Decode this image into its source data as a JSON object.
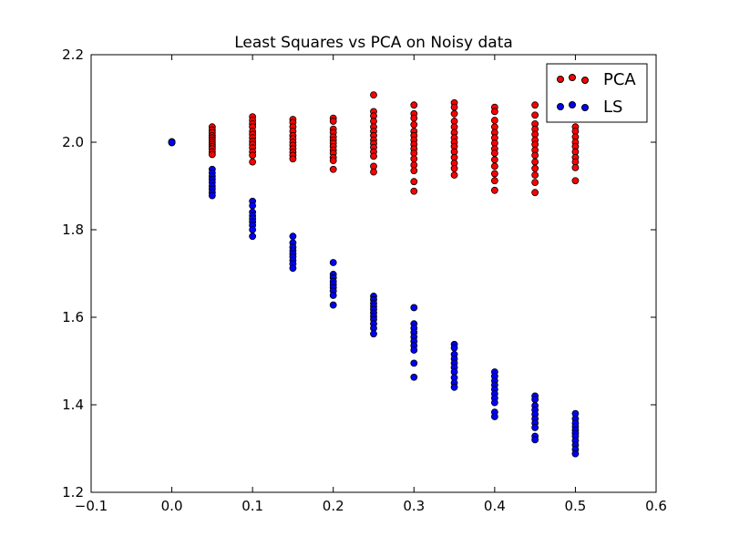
{
  "chart_data": {
    "type": "scatter",
    "title": "Least Squares vs PCA on Noisy data",
    "xlabel": "",
    "ylabel": "",
    "xlim": [
      -0.1,
      0.6
    ],
    "ylim": [
      1.2,
      2.2
    ],
    "xticks": [
      "−0.1",
      "0.0",
      "0.1",
      "0.2",
      "0.3",
      "0.4",
      "0.5",
      "0.6"
    ],
    "yticks": [
      "1.2",
      "1.4",
      "1.6",
      "1.8",
      "2.0",
      "2.2"
    ],
    "grid": false,
    "legend": "top-right",
    "series": [
      {
        "name": "PCA",
        "color": "#ff0000",
        "points": [
          [
            0.0,
            2.0
          ],
          [
            0.0,
            2.001
          ],
          [
            0.0,
            1.999
          ],
          [
            0.0,
            2.0
          ],
          [
            0.05,
            2.035
          ],
          [
            0.05,
            2.028
          ],
          [
            0.05,
            2.022
          ],
          [
            0.05,
            2.015
          ],
          [
            0.05,
            2.01
          ],
          [
            0.05,
            2.005
          ],
          [
            0.05,
            2.0
          ],
          [
            0.05,
            1.995
          ],
          [
            0.05,
            1.99
          ],
          [
            0.05,
            1.985
          ],
          [
            0.05,
            1.978
          ],
          [
            0.05,
            1.972
          ],
          [
            0.1,
            2.058
          ],
          [
            0.1,
            2.05
          ],
          [
            0.1,
            2.042
          ],
          [
            0.1,
            2.035
          ],
          [
            0.1,
            2.025
          ],
          [
            0.1,
            2.018
          ],
          [
            0.1,
            2.01
          ],
          [
            0.1,
            2.002
          ],
          [
            0.1,
            1.995
          ],
          [
            0.1,
            1.987
          ],
          [
            0.1,
            1.978
          ],
          [
            0.1,
            1.97
          ],
          [
            0.1,
            1.955
          ],
          [
            0.15,
            2.052
          ],
          [
            0.15,
            2.045
          ],
          [
            0.15,
            2.035
          ],
          [
            0.15,
            2.025
          ],
          [
            0.15,
            2.015
          ],
          [
            0.15,
            2.008
          ],
          [
            0.15,
            2.0
          ],
          [
            0.15,
            1.993
          ],
          [
            0.15,
            1.985
          ],
          [
            0.15,
            1.977
          ],
          [
            0.15,
            1.97
          ],
          [
            0.15,
            1.962
          ],
          [
            0.2,
            2.055
          ],
          [
            0.2,
            2.048
          ],
          [
            0.2,
            2.03
          ],
          [
            0.2,
            2.022
          ],
          [
            0.2,
            2.012
          ],
          [
            0.2,
            2.005
          ],
          [
            0.2,
            1.998
          ],
          [
            0.2,
            1.99
          ],
          [
            0.2,
            1.982
          ],
          [
            0.2,
            1.975
          ],
          [
            0.2,
            1.965
          ],
          [
            0.2,
            1.958
          ],
          [
            0.2,
            1.938
          ],
          [
            0.25,
            2.108
          ],
          [
            0.25,
            2.07
          ],
          [
            0.25,
            2.06
          ],
          [
            0.25,
            2.048
          ],
          [
            0.25,
            2.035
          ],
          [
            0.25,
            2.025
          ],
          [
            0.25,
            2.015
          ],
          [
            0.25,
            2.005
          ],
          [
            0.25,
            1.997
          ],
          [
            0.25,
            1.988
          ],
          [
            0.25,
            1.978
          ],
          [
            0.25,
            1.968
          ],
          [
            0.25,
            1.945
          ],
          [
            0.25,
            1.932
          ],
          [
            0.3,
            2.085
          ],
          [
            0.3,
            2.065
          ],
          [
            0.3,
            2.055
          ],
          [
            0.3,
            2.04
          ],
          [
            0.3,
            2.025
          ],
          [
            0.3,
            2.015
          ],
          [
            0.3,
            2.005
          ],
          [
            0.3,
            1.995
          ],
          [
            0.3,
            1.985
          ],
          [
            0.3,
            1.975
          ],
          [
            0.3,
            1.962
          ],
          [
            0.3,
            1.948
          ],
          [
            0.3,
            1.935
          ],
          [
            0.3,
            1.91
          ],
          [
            0.3,
            1.888
          ],
          [
            0.35,
            2.09
          ],
          [
            0.35,
            2.08
          ],
          [
            0.35,
            2.065
          ],
          [
            0.35,
            2.048
          ],
          [
            0.35,
            2.035
          ],
          [
            0.35,
            2.022
          ],
          [
            0.35,
            2.01
          ],
          [
            0.35,
            2.0
          ],
          [
            0.35,
            1.99
          ],
          [
            0.35,
            1.978
          ],
          [
            0.35,
            1.965
          ],
          [
            0.35,
            1.952
          ],
          [
            0.35,
            1.94
          ],
          [
            0.35,
            1.925
          ],
          [
            0.4,
            2.08
          ],
          [
            0.4,
            2.07
          ],
          [
            0.4,
            2.05
          ],
          [
            0.4,
            2.035
          ],
          [
            0.4,
            2.022
          ],
          [
            0.4,
            2.01
          ],
          [
            0.4,
            1.998
          ],
          [
            0.4,
            1.985
          ],
          [
            0.4,
            1.975
          ],
          [
            0.4,
            1.96
          ],
          [
            0.4,
            1.945
          ],
          [
            0.4,
            1.928
          ],
          [
            0.4,
            1.912
          ],
          [
            0.4,
            1.89
          ],
          [
            0.45,
            2.085
          ],
          [
            0.45,
            2.062
          ],
          [
            0.45,
            2.042
          ],
          [
            0.45,
            2.03
          ],
          [
            0.45,
            2.018
          ],
          [
            0.45,
            2.005
          ],
          [
            0.45,
            1.995
          ],
          [
            0.45,
            1.982
          ],
          [
            0.45,
            1.97
          ],
          [
            0.45,
            1.955
          ],
          [
            0.45,
            1.94
          ],
          [
            0.45,
            1.925
          ],
          [
            0.45,
            1.908
          ],
          [
            0.45,
            1.885
          ],
          [
            0.5,
            2.035
          ],
          [
            0.5,
            2.025
          ],
          [
            0.5,
            2.012
          ],
          [
            0.5,
            2.0
          ],
          [
            0.5,
            1.99
          ],
          [
            0.5,
            1.978
          ],
          [
            0.5,
            1.965
          ],
          [
            0.5,
            1.955
          ],
          [
            0.5,
            1.942
          ],
          [
            0.5,
            1.912
          ]
        ]
      },
      {
        "name": "LS",
        "color": "#0000ff",
        "points": [
          [
            0.0,
            2.0
          ],
          [
            0.0,
            2.001
          ],
          [
            0.0,
            1.999
          ],
          [
            0.0,
            2.0
          ],
          [
            0.05,
            1.938
          ],
          [
            0.05,
            1.93
          ],
          [
            0.05,
            1.922
          ],
          [
            0.05,
            1.915
          ],
          [
            0.05,
            1.908
          ],
          [
            0.05,
            1.9
          ],
          [
            0.05,
            1.893
          ],
          [
            0.05,
            1.885
          ],
          [
            0.05,
            1.878
          ],
          [
            0.1,
            1.865
          ],
          [
            0.1,
            1.855
          ],
          [
            0.1,
            1.84
          ],
          [
            0.1,
            1.832
          ],
          [
            0.1,
            1.825
          ],
          [
            0.1,
            1.818
          ],
          [
            0.1,
            1.81
          ],
          [
            0.1,
            1.8
          ],
          [
            0.1,
            1.785
          ],
          [
            0.15,
            1.785
          ],
          [
            0.15,
            1.77
          ],
          [
            0.15,
            1.76
          ],
          [
            0.15,
            1.752
          ],
          [
            0.15,
            1.745
          ],
          [
            0.15,
            1.738
          ],
          [
            0.15,
            1.73
          ],
          [
            0.15,
            1.722
          ],
          [
            0.15,
            1.712
          ],
          [
            0.2,
            1.725
          ],
          [
            0.2,
            1.698
          ],
          [
            0.2,
            1.69
          ],
          [
            0.2,
            1.682
          ],
          [
            0.2,
            1.675
          ],
          [
            0.2,
            1.668
          ],
          [
            0.2,
            1.66
          ],
          [
            0.2,
            1.65
          ],
          [
            0.2,
            1.628
          ],
          [
            0.25,
            1.648
          ],
          [
            0.25,
            1.64
          ],
          [
            0.25,
            1.632
          ],
          [
            0.25,
            1.625
          ],
          [
            0.25,
            1.618
          ],
          [
            0.25,
            1.61
          ],
          [
            0.25,
            1.602
          ],
          [
            0.25,
            1.595
          ],
          [
            0.25,
            1.585
          ],
          [
            0.25,
            1.575
          ],
          [
            0.25,
            1.562
          ],
          [
            0.3,
            1.622
          ],
          [
            0.3,
            1.585
          ],
          [
            0.3,
            1.575
          ],
          [
            0.3,
            1.565
          ],
          [
            0.3,
            1.555
          ],
          [
            0.3,
            1.545
          ],
          [
            0.3,
            1.535
          ],
          [
            0.3,
            1.525
          ],
          [
            0.3,
            1.495
          ],
          [
            0.3,
            1.463
          ],
          [
            0.35,
            1.538
          ],
          [
            0.35,
            1.53
          ],
          [
            0.35,
            1.515
          ],
          [
            0.35,
            1.505
          ],
          [
            0.35,
            1.495
          ],
          [
            0.35,
            1.485
          ],
          [
            0.35,
            1.475
          ],
          [
            0.35,
            1.462
          ],
          [
            0.35,
            1.45
          ],
          [
            0.35,
            1.44
          ],
          [
            0.4,
            1.475
          ],
          [
            0.4,
            1.465
          ],
          [
            0.4,
            1.455
          ],
          [
            0.4,
            1.445
          ],
          [
            0.4,
            1.435
          ],
          [
            0.4,
            1.425
          ],
          [
            0.4,
            1.415
          ],
          [
            0.4,
            1.405
          ],
          [
            0.4,
            1.383
          ],
          [
            0.4,
            1.373
          ],
          [
            0.45,
            1.42
          ],
          [
            0.45,
            1.412
          ],
          [
            0.45,
            1.398
          ],
          [
            0.45,
            1.388
          ],
          [
            0.45,
            1.378
          ],
          [
            0.45,
            1.368
          ],
          [
            0.45,
            1.358
          ],
          [
            0.45,
            1.348
          ],
          [
            0.45,
            1.328
          ],
          [
            0.45,
            1.32
          ],
          [
            0.5,
            1.38
          ],
          [
            0.5,
            1.368
          ],
          [
            0.5,
            1.358
          ],
          [
            0.5,
            1.35
          ],
          [
            0.5,
            1.342
          ],
          [
            0.5,
            1.335
          ],
          [
            0.5,
            1.328
          ],
          [
            0.5,
            1.318
          ],
          [
            0.5,
            1.308
          ],
          [
            0.5,
            1.298
          ],
          [
            0.5,
            1.288
          ]
        ]
      }
    ]
  }
}
